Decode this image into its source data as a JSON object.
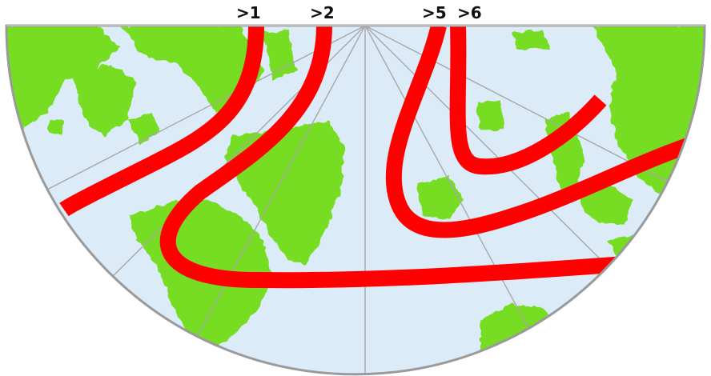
{
  "map": {
    "ocean_color": "#dcebf8",
    "land_color": "#77dd22",
    "line_color": "#ff0000",
    "grid_color": "#a8a8a8",
    "outline_color": "#9a9a9a"
  },
  "labels": {
    "line_1": ">1",
    "line_2": ">2",
    "line_5": ">5",
    "line_6": ">6"
  }
}
